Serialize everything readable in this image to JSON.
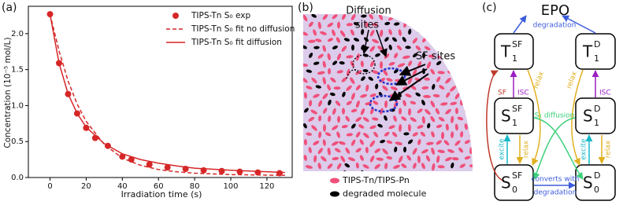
{
  "chart_data": {
    "type": "line",
    "panel_label": "(a)",
    "x_label": "Irradiation time (s)",
    "y_label": "Concentration (10⁻⁵ mol/L)",
    "xlim": [
      -12,
      134
    ],
    "ylim": [
      0,
      2.38
    ],
    "xticks": [
      0,
      20,
      40,
      60,
      80,
      100,
      120
    ],
    "yticks": [
      {
        "value": 0,
        "label": "0.0"
      },
      0.5,
      {
        "value": 1,
        "label": "1.0"
      },
      1.5,
      {
        "value": 2,
        "label": "2.0"
      }
    ],
    "legend": "upper right",
    "series": [
      {
        "name": "TIPS-Tn S₀ exp",
        "color": "#d62728",
        "style": "markers",
        "x": [
          0,
          5,
          10,
          15,
          20,
          25,
          32,
          40,
          45,
          55,
          65,
          75,
          85,
          95,
          105,
          115,
          127
        ],
        "values": [
          2.27,
          1.59,
          1.16,
          0.89,
          0.69,
          0.55,
          0.44,
          0.29,
          0.25,
          0.18,
          0.14,
          0.12,
          0.1,
          0.09,
          0.08,
          0.07,
          0.06
        ]
      },
      {
        "name": "TIPS-Tn S₀ fit no diffusion",
        "color": "#d62728",
        "style": "dashed",
        "x": [
          0,
          5,
          10,
          15,
          20,
          30,
          40,
          50,
          60,
          70,
          80,
          100,
          130
        ],
        "values": [
          2.27,
          1.76,
          1.34,
          1.02,
          0.78,
          0.46,
          0.27,
          0.17,
          0.11,
          0.08,
          0.06,
          0.04,
          0.03
        ]
      },
      {
        "name": "TIPS-Tn S₀ fit diffusion",
        "color": "#d62728",
        "style": "solid",
        "x": [
          0,
          5,
          10,
          15,
          20,
          30,
          40,
          50,
          60,
          70,
          80,
          100,
          130
        ],
        "values": [
          2.27,
          1.59,
          1.16,
          0.89,
          0.7,
          0.47,
          0.33,
          0.25,
          0.2,
          0.16,
          0.13,
          0.1,
          0.07
        ]
      }
    ]
  },
  "panel_b": {
    "panel_label": "(b)",
    "diffusion_label": [
      "Diffusion",
      "sites"
    ],
    "sf_label": "SF sites",
    "legend": [
      "TIPS-Tn/TIPS-Pn",
      "degraded molecule"
    ]
  },
  "panel_c": {
    "panel_label": "(c)",
    "top": "EPO",
    "states": [
      {
        "main": "T",
        "sup": "SF",
        "sub": "1"
      },
      {
        "main": "T",
        "sup": "D",
        "sub": "1"
      },
      {
        "main": "S",
        "sup": "SF",
        "sub": "1"
      },
      {
        "main": "S",
        "sup": "D",
        "sub": "1"
      },
      {
        "main": "S",
        "sup": "SF",
        "sub": "0"
      },
      {
        "main": "S",
        "sup": "D",
        "sub": "0"
      }
    ],
    "labels": {
      "degradation": "degradation",
      "relax": "relax",
      "sf": "SF",
      "isc": "ISC",
      "diffusion": "S₁ diffusion",
      "excite": "excite",
      "converts": [
        "converts with",
        "degradation"
      ]
    }
  }
}
